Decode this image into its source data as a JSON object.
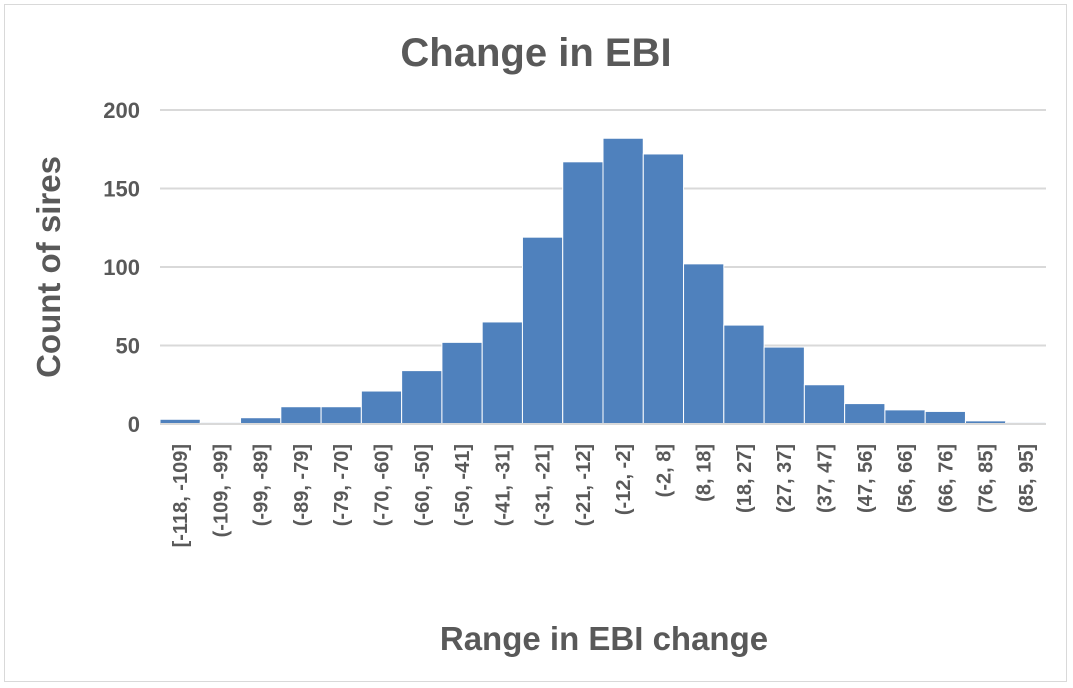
{
  "chart_data": {
    "type": "bar",
    "title": "Change in EBI",
    "xlabel": "Range in EBI change",
    "ylabel": "Count of sires",
    "categories": [
      "[-118, -109]",
      "(-109, -99]",
      "(-99, -89]",
      "(-89, -79]",
      "(-79, -70]",
      "(-70, -60]",
      "(-60, -50]",
      "(-50, -41]",
      "(-41, -31]",
      "(-31, -21]",
      "(-21, -12]",
      "(-12, -2]",
      "(-2, 8]",
      "(8, 18]",
      "(18, 27]",
      "(27, 37]",
      "(37, 47]",
      "(47, 56]",
      "(56, 66]",
      "(66, 76]",
      "(76, 85]",
      "(85, 95]"
    ],
    "values": [
      3,
      1,
      4,
      11,
      11,
      21,
      34,
      52,
      65,
      119,
      167,
      182,
      172,
      102,
      63,
      49,
      25,
      13,
      9,
      8,
      2,
      1
    ],
    "yticks": [
      "0",
      "50",
      "100",
      "150",
      "200"
    ],
    "ylim": [
      0,
      200
    ],
    "grid": true,
    "legend": "none",
    "bar_color": "#4f81bd",
    "gridline_color": "#d9d9d9",
    "text_color": "#595959"
  }
}
